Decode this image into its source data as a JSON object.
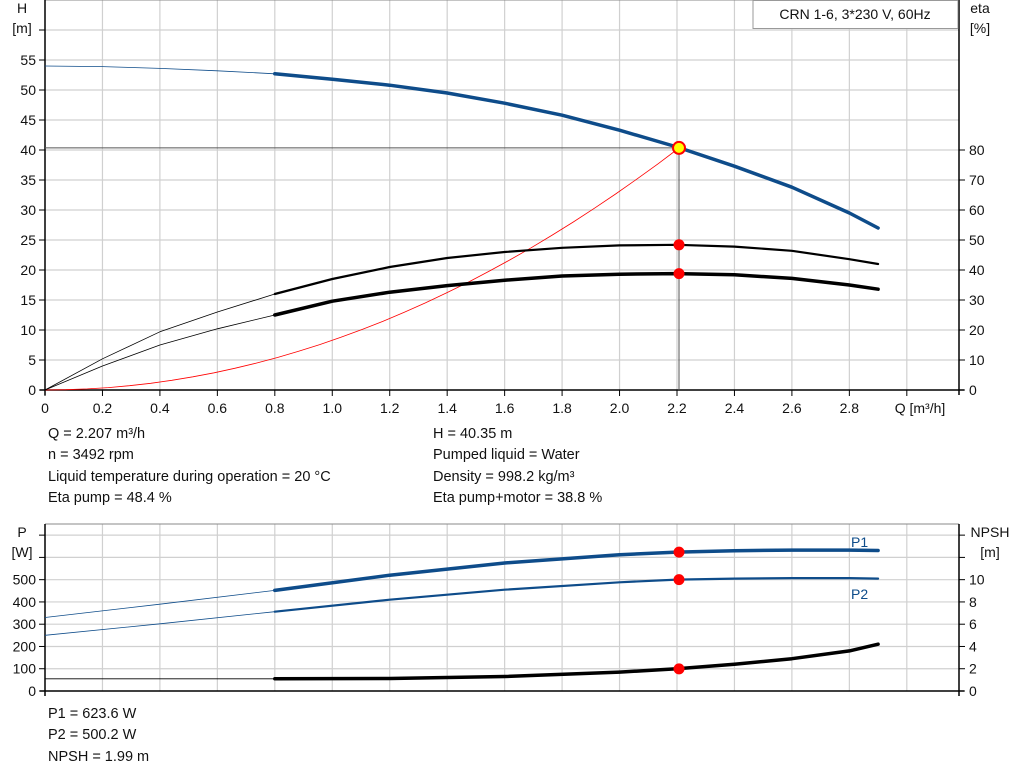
{
  "chart_data": [
    {
      "type": "line",
      "title": "CRN 1-6, 3*230 V, 60Hz",
      "xlabel": "Q [m³/h]",
      "ylabel": [
        "H",
        "[m]"
      ],
      "y2label": [
        "eta",
        "[%]"
      ],
      "xlim": [
        0,
        3.2
      ],
      "ylim": [
        0,
        65
      ],
      "y2lim": [
        0,
        130
      ],
      "xticks": [
        "0",
        "0.2",
        "0.4",
        "0.6",
        "0.8",
        "1.0",
        "1.2",
        "1.4",
        "1.6",
        "1.8",
        "2.0",
        "2.2",
        "2.4",
        "2.6",
        "2.8"
      ],
      "yticks": [
        "0",
        "5",
        "10",
        "15",
        "20",
        "25",
        "30",
        "35",
        "40",
        "45",
        "50",
        "55"
      ],
      "y2ticks": [
        "0",
        "10",
        "20",
        "30",
        "40",
        "50",
        "60",
        "70",
        "80"
      ],
      "grid": true,
      "x": [
        0,
        0.2,
        0.4,
        0.6,
        0.8,
        1.0,
        1.2,
        1.4,
        1.6,
        1.8,
        2.0,
        2.2,
        2.4,
        2.6,
        2.8,
        2.9
      ],
      "series": [
        {
          "key": "head",
          "axis": "left",
          "color": "#0e4c8a",
          "thick_from": 0.8,
          "values": [
            54,
            53.9,
            53.6,
            53.2,
            52.7,
            51.8,
            50.8,
            49.5,
            47.8,
            45.8,
            43.3,
            40.5,
            37.3,
            33.8,
            29.5,
            27
          ]
        },
        {
          "key": "eta_pump",
          "axis": "right",
          "color": "#000000",
          "thick_from": 0.8,
          "values": [
            0,
            10.4,
            19.4,
            26,
            32,
            37,
            41,
            44,
            46,
            47.4,
            48.2,
            48.4,
            47.8,
            46.4,
            43.6,
            42
          ]
        },
        {
          "key": "eta_pump_motor",
          "axis": "right",
          "color": "#000000",
          "thick_from": 0.8,
          "values": [
            0,
            8,
            15,
            20.4,
            25,
            29.6,
            32.6,
            34.8,
            36.6,
            38,
            38.6,
            38.8,
            38.4,
            37.2,
            35,
            33.6
          ]
        }
      ],
      "system_curve": {
        "color": "#ff0000",
        "k": 8.28,
        "q_max": 2.207
      },
      "operating_point": {
        "q": 2.207,
        "h": 40.35,
        "eta_pump": 48.4,
        "eta_pump_motor": 38.8
      }
    },
    {
      "type": "line",
      "ylabel": [
        "P",
        "[W]"
      ],
      "y2label": [
        "NPSH",
        "[m]"
      ],
      "xlim": [
        0,
        3.2
      ],
      "ylim": [
        0,
        750
      ],
      "y2lim": [
        0,
        15
      ],
      "yticks": [
        "0",
        "100",
        "200",
        "300",
        "400",
        "500"
      ],
      "y2ticks": [
        "0",
        "2",
        "4",
        "6",
        "8",
        "10"
      ],
      "grid": true,
      "x": [
        0,
        0.4,
        0.8,
        1.2,
        1.6,
        2.0,
        2.2,
        2.4,
        2.6,
        2.8,
        2.9
      ],
      "series": [
        {
          "key": "p1",
          "name": "P1",
          "axis": "left",
          "color": "#0e4c8a",
          "thick_from": 0.8,
          "values": [
            330,
            390,
            452,
            520,
            575,
            612,
            623.6,
            630,
            633,
            633,
            631
          ]
        },
        {
          "key": "p2",
          "name": "P2",
          "axis": "left",
          "color": "#0e4c8a",
          "thick_from": 0.8,
          "values": [
            250,
            302,
            356,
            410,
            455,
            488,
            500.2,
            505,
            507,
            507,
            505
          ]
        },
        {
          "key": "npsh",
          "axis": "right",
          "color": "#000000",
          "thick_from": 0.8,
          "values": [
            1.1,
            1.1,
            1.1,
            1.12,
            1.3,
            1.7,
            1.99,
            2.4,
            2.9,
            3.6,
            4.2
          ]
        }
      ],
      "operating_point": {
        "q": 2.207,
        "p1": 623.6,
        "p2": 500.2,
        "npsh": 1.99
      }
    }
  ],
  "info": {
    "q": "Q = 2.207 m³/h",
    "n": "n = 3492 rpm",
    "temp": "Liquid temperature during operation = 20 °C",
    "eta_pump": "Eta pump = 48.4 %",
    "h": "H = 40.35 m",
    "liquid": "Pumped liquid = Water",
    "density": "Density = 998.2 kg/m³",
    "eta_total": "Eta pump+motor = 38.8 %",
    "p1": "P1 = 623.6 W",
    "p2": "P2 = 500.2 W",
    "npsh": "NPSH = 1.99 m"
  },
  "colors": {
    "operating_point": "#ff0000",
    "duty_marker_fill": "#ffff00",
    "grid": "#d0d0d0"
  }
}
